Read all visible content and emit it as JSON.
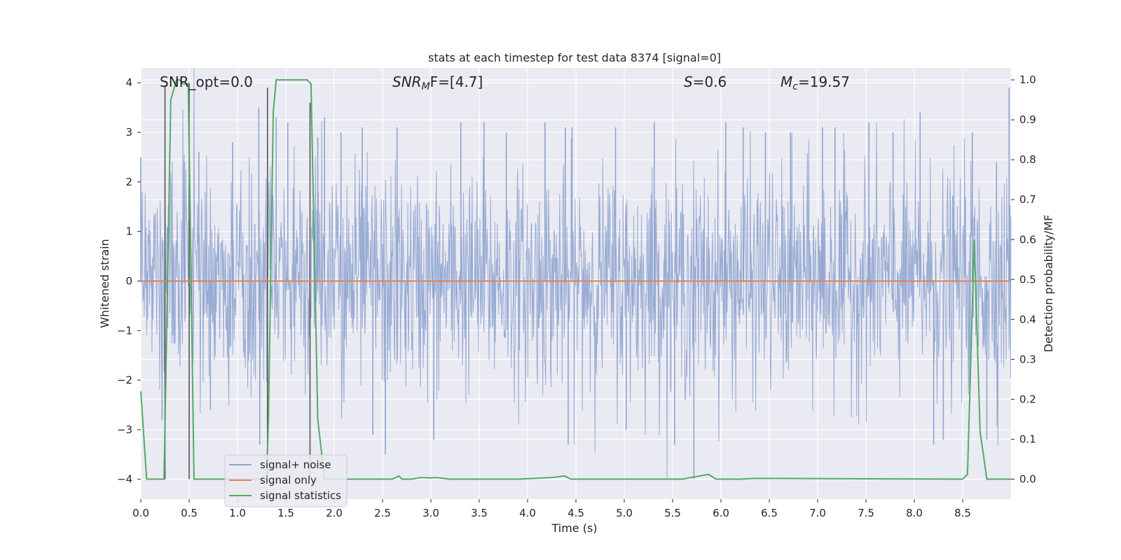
{
  "chart_data": {
    "type": "line",
    "title": "stats at each timestep for test data 8374 [signal=0]",
    "xlabel": "Time (s)",
    "ylabel_left": "Whitened strain",
    "ylabel_right": "Detection probability/MF",
    "xlim": [
      0.0,
      9.0
    ],
    "ylim_left": [
      -4.4,
      4.3
    ],
    "ylim_right": [
      -0.05,
      1.03
    ],
    "x_ticks": [
      0.0,
      0.5,
      1.0,
      1.5,
      2.0,
      2.5,
      3.0,
      3.5,
      4.0,
      4.5,
      5.0,
      5.5,
      6.0,
      6.5,
      7.0,
      7.5,
      8.0,
      8.5
    ],
    "x_tick_labels": [
      "0.0",
      "0.5",
      "1.0",
      "1.5",
      "2.0",
      "2.5",
      "3.0",
      "3.5",
      "4.0",
      "4.5",
      "5.0",
      "5.5",
      "6.0",
      "6.5",
      "7.0",
      "7.5",
      "8.0",
      "8.5"
    ],
    "y_left_ticks": [
      -4,
      -3,
      -2,
      -1,
      0,
      1,
      2,
      3,
      4
    ],
    "y_left_tick_labels": [
      "−4",
      "−3",
      "−2",
      "−1",
      "0",
      "1",
      "2",
      "3",
      "4"
    ],
    "y_right_ticks": [
      0.0,
      0.1,
      0.2,
      0.3,
      0.4,
      0.5,
      0.6,
      0.7,
      0.8,
      0.9,
      1.0
    ],
    "y_right_tick_labels": [
      "0.0",
      "0.1",
      "0.2",
      "0.3",
      "0.4",
      "0.5",
      "0.6",
      "0.7",
      "0.8",
      "0.9",
      "1.0"
    ],
    "annotations": {
      "snr_opt": "SNR_opt=0.0",
      "snr_mf_base": "SNR",
      "snr_mf_sub": "M",
      "snr_mf_rest": "F=[4.7]",
      "s_var": "S",
      "s_rest": "=0.6",
      "mc_var": "M",
      "mc_sub": "c",
      "mc_rest": "=19.57"
    },
    "legend": {
      "placement": "lower-left",
      "entries": [
        {
          "name": "signal+ noise",
          "color": "#8fa4cf"
        },
        {
          "name": "signal only",
          "color": "#dd8452"
        },
        {
          "name": "signal statistics",
          "color": "#55a868"
        }
      ]
    },
    "series": [
      {
        "name": "signal+ noise",
        "axis": "left",
        "color": "#8fa4cf",
        "band": {
          "sigma": 1.1,
          "typical_peak": 3.0,
          "max": 4.3,
          "min": -4.0
        },
        "spikes": [
          {
            "x": 0.0,
            "y": 2.5
          },
          {
            "x": 0.22,
            "y": -2.8
          },
          {
            "x": 0.45,
            "y": 2.4
          },
          {
            "x": 0.6,
            "y": 2.6
          },
          {
            "x": 0.72,
            "y": -2.6
          },
          {
            "x": 0.95,
            "y": 2.8
          },
          {
            "x": 1.22,
            "y": 3.5
          },
          {
            "x": 1.23,
            "y": -3.3
          },
          {
            "x": 1.4,
            "y": 3.3
          },
          {
            "x": 1.52,
            "y": 3.2
          },
          {
            "x": 1.83,
            "y": 2.9
          },
          {
            "x": 1.9,
            "y": 3.3
          },
          {
            "x": 2.07,
            "y": 3.0
          },
          {
            "x": 2.29,
            "y": 3.1
          },
          {
            "x": 2.4,
            "y": -3.1
          },
          {
            "x": 2.53,
            "y": -3.5
          },
          {
            "x": 2.65,
            "y": 3.1
          },
          {
            "x": 3.03,
            "y": -3.2
          },
          {
            "x": 3.31,
            "y": 3.2
          },
          {
            "x": 3.55,
            "y": 3.2
          },
          {
            "x": 3.78,
            "y": 3.0
          },
          {
            "x": 4.18,
            "y": 3.2
          },
          {
            "x": 4.39,
            "y": 3.1
          },
          {
            "x": 4.42,
            "y": -3.3
          },
          {
            "x": 4.46,
            "y": 3.1
          },
          {
            "x": 4.91,
            "y": 3.1
          },
          {
            "x": 5.02,
            "y": -3.0
          },
          {
            "x": 5.31,
            "y": 3.2
          },
          {
            "x": 5.52,
            "y": -3.3
          },
          {
            "x": 5.72,
            "y": -4.0
          },
          {
            "x": 6.05,
            "y": 3.2
          },
          {
            "x": 6.23,
            "y": 3.1
          },
          {
            "x": 6.46,
            "y": 3.0
          },
          {
            "x": 6.72,
            "y": 3.0
          },
          {
            "x": 7.05,
            "y": 3.1
          },
          {
            "x": 7.18,
            "y": 3.1
          },
          {
            "x": 7.53,
            "y": 3.2
          },
          {
            "x": 7.78,
            "y": 3.0
          },
          {
            "x": 8.06,
            "y": 3.4
          },
          {
            "x": 8.2,
            "y": -3.3
          },
          {
            "x": 8.3,
            "y": -3.2
          },
          {
            "x": 8.6,
            "y": 3.0
          },
          {
            "x": 8.75,
            "y": -3.2
          },
          {
            "x": 8.85,
            "y": 2.4
          },
          {
            "x": 8.98,
            "y": 3.9
          }
        ]
      },
      {
        "name": "signal only",
        "axis": "left",
        "color": "#dd8452",
        "x": [
          0.0,
          9.0
        ],
        "y": [
          0.0,
          0.0
        ]
      },
      {
        "name": "signal statistics",
        "axis": "right",
        "color": "#55a868",
        "x": [
          0.0,
          0.06,
          0.24,
          0.31,
          0.37,
          0.4,
          0.44,
          0.49,
          0.55,
          1.3,
          1.32,
          1.37,
          1.4,
          1.72,
          1.76,
          1.83,
          1.9,
          2.5,
          2.6,
          2.67,
          2.7,
          2.8,
          2.9,
          3.0,
          3.05,
          3.2,
          3.9,
          4.25,
          4.38,
          4.45,
          5.6,
          5.87,
          5.95,
          6.2,
          6.35,
          8.5,
          8.55,
          8.62,
          8.68,
          8.75,
          9.0
        ],
        "y": [
          0.22,
          0.0,
          0.0,
          0.95,
          1.0,
          1.0,
          0.99,
          0.99,
          0.0,
          0.0,
          0.15,
          0.92,
          1.0,
          1.0,
          0.99,
          0.15,
          0.0,
          0.0,
          0.0,
          0.008,
          0.0,
          0.0,
          0.004,
          0.003,
          0.004,
          0.0,
          0.0,
          0.004,
          0.008,
          0.0,
          0.0,
          0.012,
          0.0,
          0.0,
          0.002,
          0.0,
          0.012,
          0.6,
          0.12,
          0.0,
          0.0
        ]
      }
    ],
    "vertical_markers": {
      "color": "#555555",
      "x": [
        0.25,
        0.5,
        1.31,
        1.75
      ],
      "y_top": [
        3.95,
        4.0,
        3.9,
        3.6
      ],
      "y_bottom": [
        -4.0,
        -4.0,
        -4.0,
        -4.0
      ]
    },
    "grid": true
  }
}
